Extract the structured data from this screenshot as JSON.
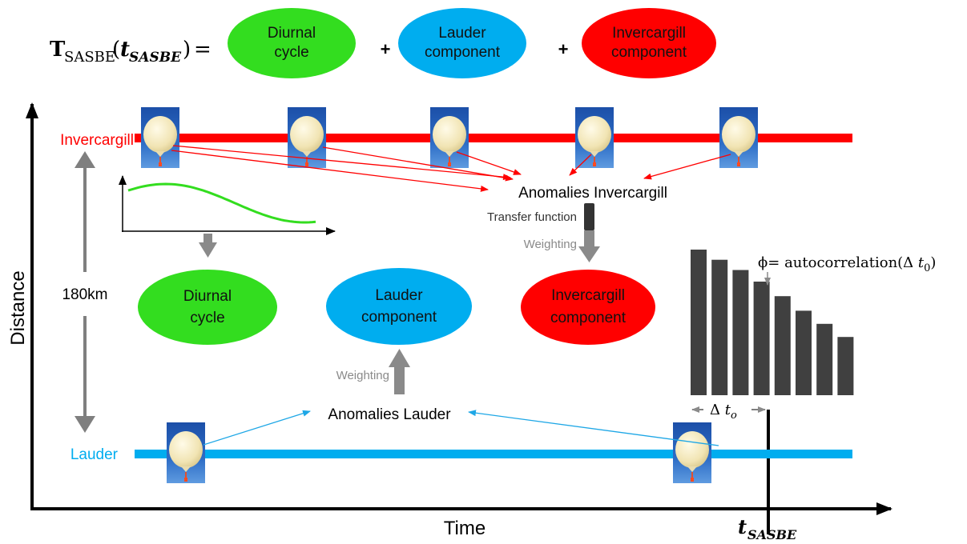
{
  "equation": {
    "lhs_symbol": "T",
    "lhs_subscript": "SASBE",
    "lhs_argument": "t",
    "lhs_argument_subscript": "SASBE",
    "equals": "=",
    "plus": "+"
  },
  "components": {
    "diurnal": [
      "Diurnal",
      "cycle"
    ],
    "lauder": [
      "Lauder",
      "component"
    ],
    "invercargill": [
      "Invercargill",
      "component"
    ]
  },
  "axes": {
    "y_label": "Distance",
    "x_label": "Time",
    "t_label": "t",
    "t_subscript": "SASBE"
  },
  "stations": {
    "top": "Invercargill",
    "bottom": "Lauder",
    "distance": "180km"
  },
  "labels": {
    "anomalies_invercargill": "Anomalies Invercargill",
    "anomalies_lauder": "Anomalies Lauder",
    "transfer_function": "Transfer function",
    "weighting_top": "Weighting",
    "weighting_bottom": "Weighting",
    "phi_prefix": "ϕ= autocorrelation(Δ ",
    "phi_var": "t",
    "phi_sub": "0",
    "phi_suffix": ")",
    "delta": "Δ ",
    "delta_var": "t",
    "delta_sub": "o"
  },
  "autocorrelation_bars": [
    1.0,
    0.93,
    0.86,
    0.78,
    0.68,
    0.58,
    0.49,
    0.4
  ],
  "colors": {
    "diurnal": "#33dd1f",
    "lauder": "#00adef",
    "invercargill": "#ff0000",
    "bars": "#404040",
    "arrow_gray": "#7f7f7f"
  }
}
